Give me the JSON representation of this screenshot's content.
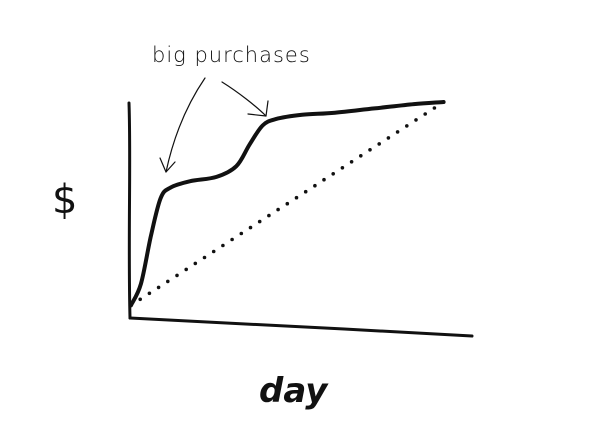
{
  "chart_data": {
    "type": "line",
    "title": "",
    "xlabel": "day",
    "ylabel": "$",
    "grid": false,
    "legend": "none",
    "annotations": [
      {
        "text": "big purchases",
        "target": "steep rises in the solid curve"
      }
    ],
    "xlim": [
      0,
      1
    ],
    "ylim": [
      0,
      1
    ],
    "series": [
      {
        "style": "solid",
        "x": [
          0.0,
          0.03,
          0.06,
          0.09,
          0.12,
          0.18,
          0.26,
          0.32,
          0.36,
          0.4,
          0.44,
          0.52,
          0.62,
          0.74,
          0.86,
          0.95
        ],
        "y": [
          0.05,
          0.15,
          0.37,
          0.55,
          0.6,
          0.63,
          0.65,
          0.7,
          0.8,
          0.89,
          0.92,
          0.94,
          0.95,
          0.97,
          0.99,
          1.0
        ]
      },
      {
        "style": "dotted",
        "x": [
          0.0,
          0.95
        ],
        "y": [
          0.05,
          1.0
        ]
      }
    ]
  }
}
